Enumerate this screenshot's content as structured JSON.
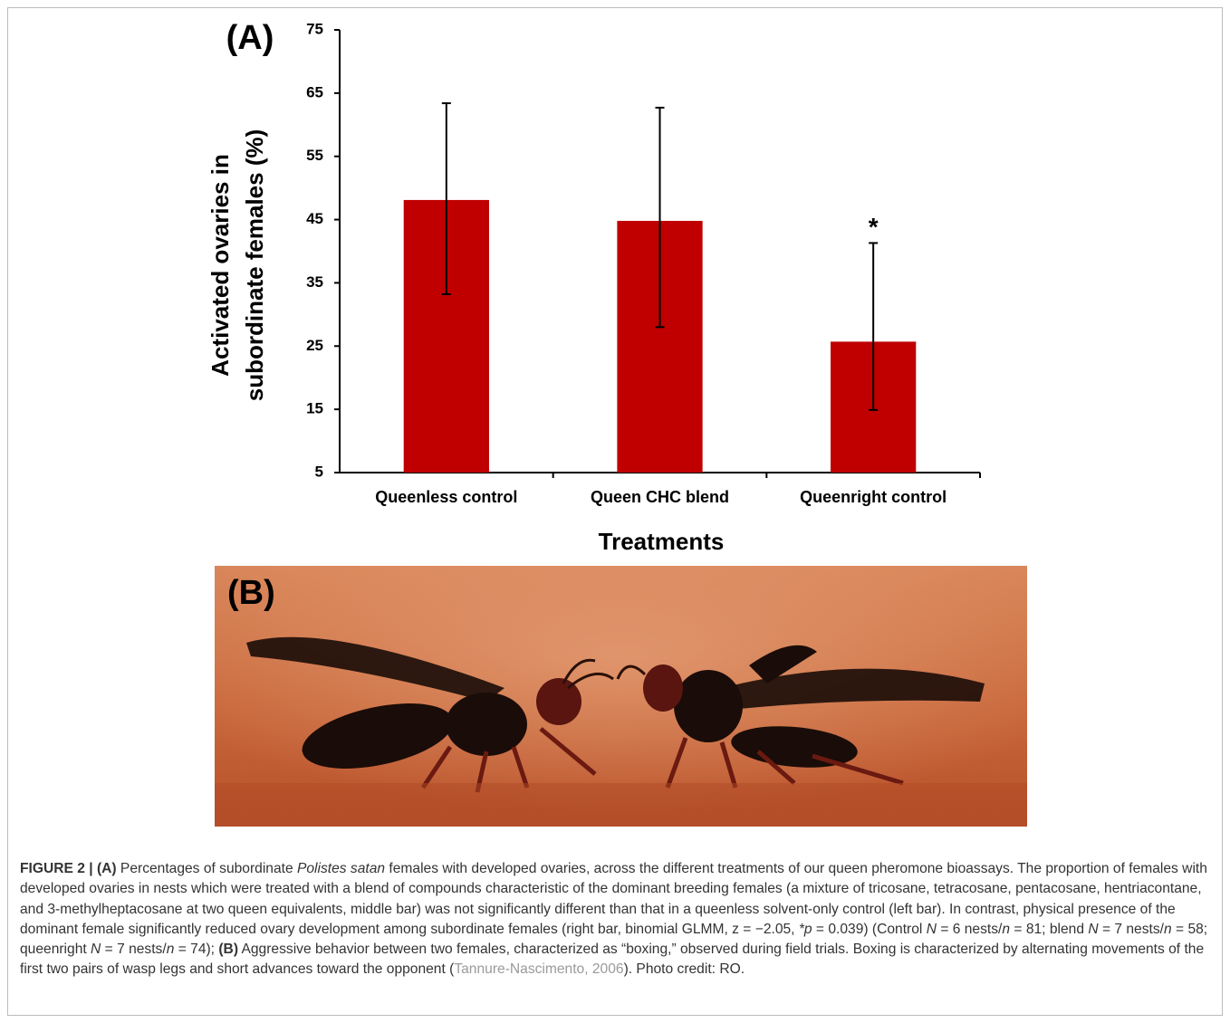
{
  "chart_data": {
    "type": "bar",
    "title": "(A)",
    "categories": [
      "Queenless control",
      "Queen CHC blend",
      "Queenright control"
    ],
    "values": [
      48.1,
      44.8,
      25.7
    ],
    "error_low": [
      14.9,
      16.8,
      10.8
    ],
    "error_high": [
      15.3,
      17.9,
      15.6
    ],
    "significance": [
      null,
      null,
      "*"
    ],
    "color": "#c00000",
    "xlabel": "Treatments",
    "ylabel": [
      "Activated ovaries in",
      "subordinate females (%)"
    ],
    "ylim": [
      5,
      75
    ],
    "yticks": [
      5,
      15,
      25,
      35,
      45,
      55,
      65,
      75
    ],
    "grid": false
  },
  "photo": {
    "label": "(B)"
  },
  "caption": [
    {
      "text": "FIGURE 2 | (A)",
      "style": "bold"
    },
    {
      "text": " Percentages of subordinate ",
      "style": "normal"
    },
    {
      "text": "Polistes satan",
      "style": "italic"
    },
    {
      "text": " females with developed ovaries, across the different treatments of our queen pheromone bioassays. The proportion of females with developed ovaries in nests which were treated with a blend of compounds characteristic of the dominant breeding females (a mixture of tricosane, tetracosane, pentacosane, hentriacontane, and 3-methylheptacosane at two queen equivalents, middle bar) was not significantly different than that in a queenless solvent-only control (left bar). In contrast, physical presence of the dominant female significantly reduced ovary development among subordinate females (right bar, binomial GLMM, z = −2.05, ",
      "style": "normal"
    },
    {
      "text": "*p",
      "style": "italic"
    },
    {
      "text": " = 0.039) (Control ",
      "style": "normal"
    },
    {
      "text": "N",
      "style": "italic"
    },
    {
      "text": " = 6 nests/",
      "style": "normal"
    },
    {
      "text": "n",
      "style": "italic"
    },
    {
      "text": " = 81; blend ",
      "style": "normal"
    },
    {
      "text": "N",
      "style": "italic"
    },
    {
      "text": " = 7 nests/",
      "style": "normal"
    },
    {
      "text": "n",
      "style": "italic"
    },
    {
      "text": " = 58; queenright ",
      "style": "normal"
    },
    {
      "text": "N",
      "style": "italic"
    },
    {
      "text": " = 7 nests/",
      "style": "normal"
    },
    {
      "text": "n",
      "style": "italic"
    },
    {
      "text": " = 74); ",
      "style": "normal"
    },
    {
      "text": "(B)",
      "style": "bold"
    },
    {
      "text": " Aggressive behavior between two females, characterized as “boxing,” observed during field trials. Boxing is characterized by alternating movements of the first two pairs of wasp legs and short advances toward the opponent (",
      "style": "normal"
    },
    {
      "text": "Tannure-Nascimento, 2006",
      "style": "link"
    },
    {
      "text": "). Photo credit: RO.",
      "style": "normal"
    }
  ]
}
